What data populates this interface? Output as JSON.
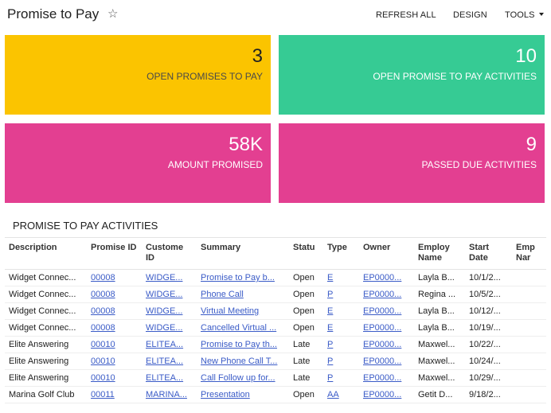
{
  "header": {
    "title": "Promise to Pay",
    "star": "☆",
    "refresh_label": "REFRESH ALL",
    "design_label": "DESIGN",
    "tools_label": "TOOLS"
  },
  "tiles": [
    {
      "value": "3",
      "label": "OPEN PROMISES TO PAY",
      "color": "#fbc400"
    },
    {
      "value": "10",
      "label": "OPEN PROMISE TO PAY ACTIVITIES",
      "color": "#36cb94"
    },
    {
      "value": "58K",
      "label": "AMOUNT PROMISED",
      "color": "#e33f91"
    },
    {
      "value": "9",
      "label": "PASSED DUE ACTIVITIES",
      "color": "#e33f91"
    }
  ],
  "section": {
    "title": "PROMISE TO PAY ACTIVITIES"
  },
  "table": {
    "columns": [
      "Description",
      "Promise ID",
      "Custome ID",
      "Summary",
      "Statu",
      "Type",
      "Owner",
      "Employ Name",
      "Start Date",
      "Emp Nar"
    ],
    "rows": [
      [
        "Widget Connec...",
        "00008",
        "WIDGE...",
        "Promise to Pay b...",
        "Open",
        "E",
        "EP0000...",
        "Layla B...",
        "10/1/2..."
      ],
      [
        "Widget Connec...",
        "00008",
        "WIDGE...",
        "Phone Call",
        "Open",
        "P",
        "EP0000...",
        "Regina ...",
        "10/5/2..."
      ],
      [
        "Widget Connec...",
        "00008",
        "WIDGE...",
        "Virtual Meeting",
        "Open",
        "E",
        "EP0000...",
        "Layla B...",
        "10/12/..."
      ],
      [
        "Widget Connec...",
        "00008",
        "WIDGE...",
        "Cancelled Virtual ...",
        "Open",
        "E",
        "EP0000...",
        "Layla B...",
        "10/19/..."
      ],
      [
        "Elite Answering",
        "00010",
        "ELITEA...",
        "Promise to Pay th...",
        "Late",
        "P",
        "EP0000...",
        "Maxwel...",
        "10/22/..."
      ],
      [
        "Elite Answering",
        "00010",
        "ELITEA...",
        "New Phone Call T...",
        "Late",
        "P",
        "EP0000...",
        "Maxwel...",
        "10/24/..."
      ],
      [
        "Elite Answering",
        "00010",
        "ELITEA...",
        "Call Follow up for...",
        "Late",
        "P",
        "EP0000...",
        "Maxwel...",
        "10/29/..."
      ],
      [
        "Marina Golf Club",
        "00011",
        "MARINA...",
        "Presentation",
        "Open",
        "AA",
        "EP0000...",
        "Getit D...",
        "9/18/2..."
      ]
    ]
  }
}
